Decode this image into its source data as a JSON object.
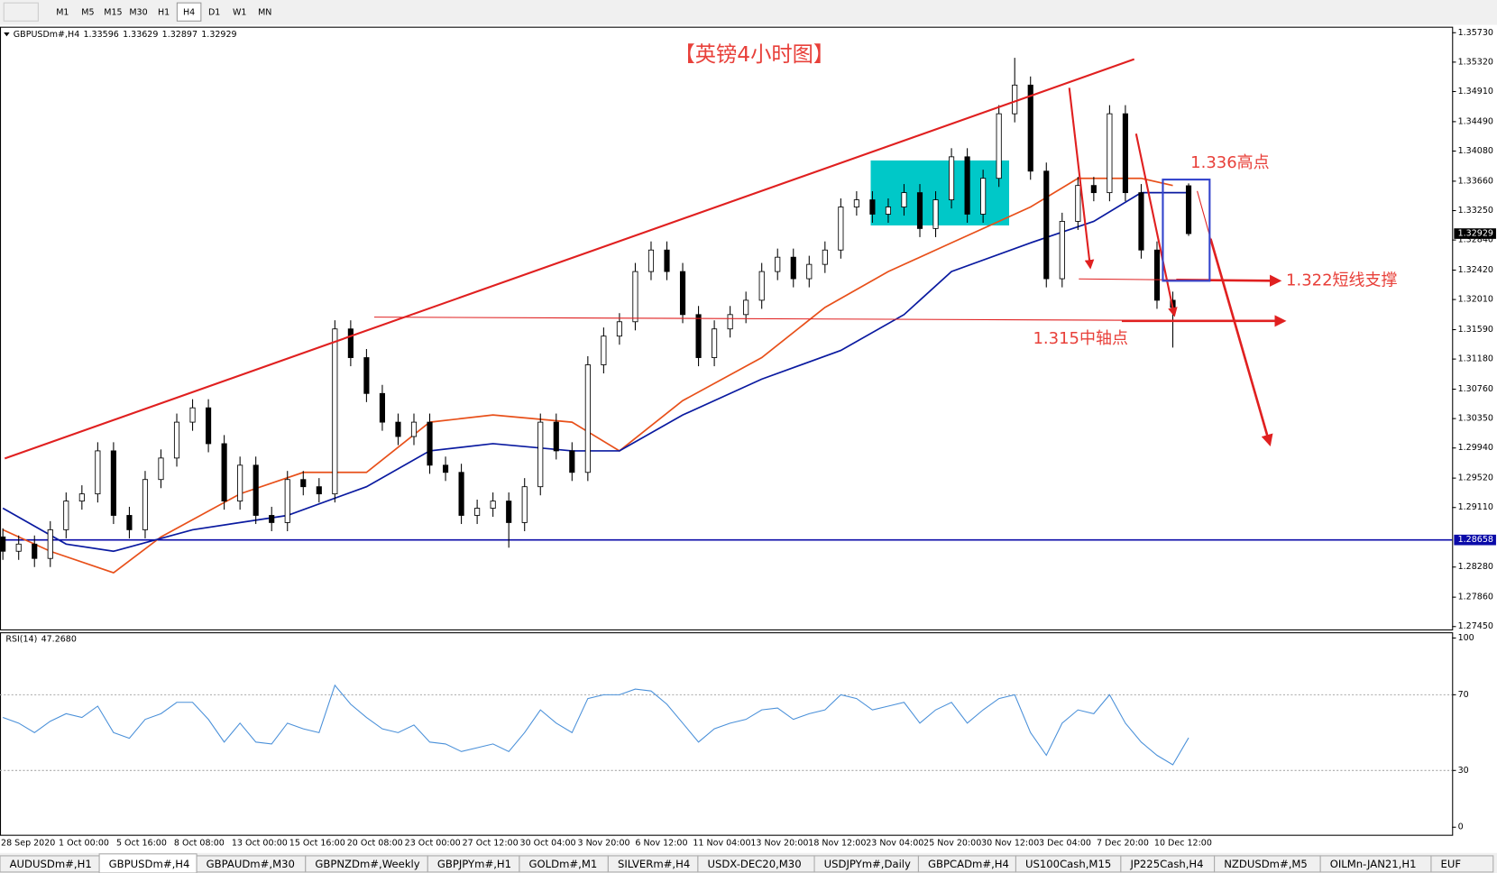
{
  "toolbar": {
    "timeframes": [
      "M1",
      "M5",
      "M15",
      "M30",
      "H1",
      "H4",
      "D1",
      "W1",
      "MN"
    ],
    "active_index": 5
  },
  "chart_data": [
    {
      "type": "candlestick",
      "symbol": "GBPUSDm#,H4",
      "title": "【英镑4小时图】",
      "annotations": [
        "1.336高点",
        "1.322短线支撑",
        "1.315中轴点"
      ],
      "ylim": [
        1.2741,
        1.358
      ],
      "yticks": [
        {
          "value": 1.3573,
          "label": "1.35730"
        },
        {
          "value": 1.3532,
          "label": "1.35320"
        },
        {
          "value": 1.3491,
          "label": "1.34910"
        },
        {
          "value": 1.3449,
          "label": "1.34490"
        },
        {
          "value": 1.3408,
          "label": "1.34080"
        },
        {
          "value": 1.3366,
          "label": "1.33660"
        },
        {
          "value": 1.3325,
          "label": "1.33250"
        },
        {
          "value": 1.3284,
          "label": "1.32840"
        },
        {
          "value": 1.3242,
          "label": "1.32420"
        },
        {
          "value": 1.3201,
          "label": "1.32010"
        },
        {
          "value": 1.3159,
          "label": "1.31590"
        },
        {
          "value": 1.3118,
          "label": "1.31180"
        },
        {
          "value": 1.3076,
          "label": "1.30760"
        },
        {
          "value": 1.3035,
          "label": "1.30350"
        },
        {
          "value": 1.2994,
          "label": "1.29940"
        },
        {
          "value": 1.2952,
          "label": "1.29520"
        },
        {
          "value": 1.2911,
          "label": "1.29110"
        },
        {
          "value": 1.2828,
          "label": "1.28280"
        },
        {
          "value": 1.2786,
          "label": "1.27860"
        },
        {
          "value": 1.2745,
          "label": "1.27450"
        }
      ],
      "xlabels": [
        "28 Sep 2020",
        "1 Oct 00:00",
        "5 Oct 16:00",
        "8 Oct 08:00",
        "13 Oct 00:00",
        "15 Oct 16:00",
        "20 Oct 08:00",
        "23 Oct 00:00",
        "27 Oct 12:00",
        "30 Oct 04:00",
        "3 Nov 20:00",
        "6 Nov 12:00",
        "11 Nov 04:00",
        "13 Nov 20:00",
        "18 Nov 12:00",
        "23 Nov 04:00",
        "25 Nov 20:00",
        "30 Nov 12:00",
        "3 Dec 04:00",
        "7 Dec 20:00",
        "10 Dec 12:00"
      ],
      "hlines": [
        {
          "value": 1.28658,
          "color": "#0a0aa8"
        }
      ],
      "ohlc": [
        [
          1.287,
          1.2882,
          1.2838,
          1.285
        ],
        [
          1.285,
          1.2872,
          1.2838,
          1.286
        ],
        [
          1.286,
          1.2872,
          1.2828,
          1.284
        ],
        [
          1.284,
          1.2892,
          1.2828,
          1.288
        ],
        [
          1.288,
          1.2932,
          1.2868,
          1.292
        ],
        [
          1.292,
          1.2942,
          1.2908,
          1.293
        ],
        [
          1.293,
          1.3002,
          1.2918,
          1.299
        ],
        [
          1.299,
          1.3002,
          1.2888,
          1.29
        ],
        [
          1.29,
          1.2912,
          1.2868,
          1.288
        ],
        [
          1.288,
          1.2962,
          1.2868,
          1.295
        ],
        [
          1.295,
          1.2992,
          1.2938,
          1.298
        ],
        [
          1.298,
          1.3042,
          1.2968,
          1.303
        ],
        [
          1.303,
          1.3062,
          1.3018,
          1.305
        ],
        [
          1.305,
          1.3062,
          1.2988,
          1.3
        ],
        [
          1.3,
          1.3012,
          1.2908,
          1.292
        ],
        [
          1.292,
          1.2982,
          1.2908,
          1.297
        ],
        [
          1.297,
          1.2982,
          1.2888,
          1.29
        ],
        [
          1.29,
          1.2912,
          1.2878,
          1.289
        ],
        [
          1.289,
          1.2962,
          1.2878,
          1.295
        ],
        [
          1.295,
          1.2962,
          1.2928,
          1.294
        ],
        [
          1.294,
          1.2952,
          1.2918,
          1.293
        ],
        [
          1.293,
          1.3172,
          1.2918,
          1.316
        ],
        [
          1.316,
          1.3172,
          1.3108,
          1.312
        ],
        [
          1.312,
          1.3132,
          1.3058,
          1.307
        ],
        [
          1.307,
          1.3082,
          1.3018,
          1.303
        ],
        [
          1.303,
          1.3042,
          1.2998,
          1.301
        ],
        [
          1.301,
          1.3042,
          1.2998,
          1.303
        ],
        [
          1.303,
          1.3042,
          1.2958,
          1.297
        ],
        [
          1.297,
          1.2982,
          1.2948,
          1.296
        ],
        [
          1.296,
          1.2972,
          1.2888,
          1.29
        ],
        [
          1.29,
          1.2922,
          1.2888,
          1.291
        ],
        [
          1.291,
          1.2932,
          1.2898,
          1.292
        ],
        [
          1.292,
          1.2932,
          1.2855,
          1.289
        ],
        [
          1.289,
          1.2952,
          1.2878,
          1.294
        ],
        [
          1.294,
          1.3042,
          1.2928,
          1.303
        ],
        [
          1.303,
          1.3042,
          1.2978,
          1.299
        ],
        [
          1.299,
          1.3002,
          1.2948,
          1.296
        ],
        [
          1.296,
          1.3122,
          1.2948,
          1.311
        ],
        [
          1.311,
          1.3162,
          1.3098,
          1.315
        ],
        [
          1.315,
          1.3182,
          1.3138,
          1.317
        ],
        [
          1.317,
          1.3252,
          1.3158,
          1.324
        ],
        [
          1.324,
          1.3282,
          1.3228,
          1.327
        ],
        [
          1.327,
          1.3282,
          1.3228,
          1.324
        ],
        [
          1.324,
          1.3252,
          1.3168,
          1.318
        ],
        [
          1.318,
          1.3192,
          1.3108,
          1.312
        ],
        [
          1.312,
          1.3172,
          1.3108,
          1.316
        ],
        [
          1.316,
          1.3192,
          1.3148,
          1.318
        ],
        [
          1.318,
          1.3212,
          1.3168,
          1.32
        ],
        [
          1.32,
          1.3252,
          1.3188,
          1.324
        ],
        [
          1.324,
          1.3272,
          1.3228,
          1.326
        ],
        [
          1.326,
          1.3272,
          1.3218,
          1.323
        ],
        [
          1.323,
          1.3262,
          1.3218,
          1.325
        ],
        [
          1.325,
          1.3282,
          1.3238,
          1.327
        ],
        [
          1.327,
          1.3342,
          1.3258,
          1.333
        ],
        [
          1.333,
          1.3352,
          1.3318,
          1.334
        ],
        [
          1.334,
          1.3352,
          1.3308,
          1.332
        ],
        [
          1.332,
          1.3342,
          1.3308,
          1.333
        ],
        [
          1.333,
          1.3362,
          1.3318,
          1.335
        ],
        [
          1.335,
          1.3362,
          1.3288,
          1.33
        ],
        [
          1.33,
          1.3352,
          1.3288,
          1.334
        ],
        [
          1.334,
          1.3412,
          1.3328,
          1.34
        ],
        [
          1.34,
          1.3412,
          1.3308,
          1.332
        ],
        [
          1.332,
          1.3382,
          1.3308,
          1.337
        ],
        [
          1.337,
          1.3472,
          1.3358,
          1.346
        ],
        [
          1.346,
          1.3538,
          1.3448,
          1.35
        ],
        [
          1.35,
          1.3512,
          1.3368,
          1.338
        ],
        [
          1.338,
          1.3392,
          1.3218,
          1.323
        ],
        [
          1.323,
          1.3322,
          1.3218,
          1.331
        ],
        [
          1.331,
          1.3372,
          1.3298,
          1.336
        ],
        [
          1.336,
          1.3372,
          1.3338,
          1.335
        ],
        [
          1.335,
          1.3472,
          1.3338,
          1.346
        ],
        [
          1.346,
          1.3472,
          1.3338,
          1.335
        ],
        [
          1.335,
          1.3362,
          1.3258,
          1.327
        ],
        [
          1.327,
          1.3282,
          1.3188,
          1.32
        ],
        [
          1.32,
          1.3212,
          1.3134,
          1.319
        ],
        [
          1.33596,
          1.33629,
          1.32897,
          1.32929
        ]
      ],
      "series": [
        {
          "color": "#e8501a",
          "x": [
            0,
            3,
            7,
            10,
            15,
            19,
            23,
            27,
            31,
            36,
            39,
            43,
            48,
            52,
            56,
            60,
            65,
            68,
            72,
            74
          ],
          "values": [
            1.288,
            1.285,
            1.282,
            1.287,
            1.293,
            1.296,
            1.296,
            1.303,
            1.304,
            1.303,
            1.299,
            1.306,
            1.312,
            1.319,
            1.324,
            1.328,
            1.333,
            1.337,
            1.337,
            1.336
          ]
        },
        {
          "color": "#0a1aa0",
          "x": [
            0,
            4,
            7,
            12,
            18,
            23,
            27,
            31,
            36,
            39,
            43,
            48,
            53,
            57,
            60,
            65,
            69,
            72,
            75
          ],
          "values": [
            1.291,
            1.286,
            1.285,
            1.288,
            1.29,
            1.294,
            1.299,
            1.3,
            1.299,
            1.299,
            1.304,
            1.309,
            1.313,
            1.318,
            1.324,
            1.328,
            1.331,
            1.335,
            1.335
          ]
        }
      ]
    },
    {
      "type": "line",
      "name": "RSI(14)",
      "current": {
        "value": 47.268,
        "label": "47.2680"
      },
      "color": "#4a90d9",
      "ylim": [
        -4,
        102.5
      ],
      "yticks": [
        0,
        30,
        70,
        100
      ],
      "levels": [
        30,
        70
      ],
      "values": [
        58,
        55,
        50,
        56,
        60,
        58,
        64,
        50,
        47,
        57,
        60,
        66,
        66,
        57,
        45,
        55,
        45,
        44,
        55,
        52,
        50,
        75,
        65,
        58,
        52,
        50,
        54,
        45,
        44,
        40,
        42,
        44,
        40,
        50,
        62,
        55,
        50,
        68,
        70,
        70,
        73,
        72,
        65,
        55,
        45,
        52,
        55,
        57,
        62,
        63,
        57,
        60,
        62,
        70,
        68,
        62,
        64,
        66,
        55,
        62,
        66,
        55,
        62,
        68,
        70,
        50,
        38,
        55,
        62,
        60,
        70,
        55,
        45,
        38,
        33,
        47.268
      ]
    }
  ],
  "tabs": {
    "items": [
      "AUDUSDm#,H1",
      "GBPUSDm#,H4",
      "GBPAUDm#,M30",
      "GBPNZDm#,Weekly",
      "GBPJPYm#,H1",
      "GOLDm#,M1",
      "SILVERm#,H4",
      "USDX-DEC20,M30",
      "USDJPYm#,Daily",
      "GBPCADm#,H4",
      "US100Cash,M15",
      "JP225Cash,H4",
      "NZDUSDm#,M5",
      "OILMn-JAN21,H1",
      "EUF"
    ],
    "active_index": 1
  }
}
